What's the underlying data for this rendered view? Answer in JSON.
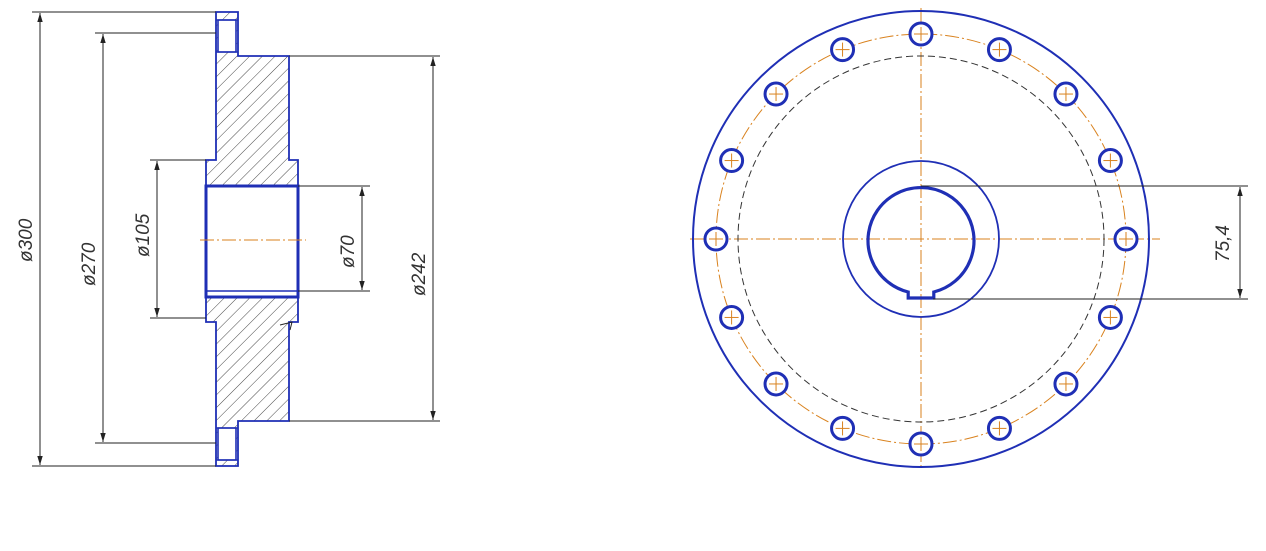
{
  "dimensions": {
    "d300": "ø300",
    "d270": "ø270",
    "d105": "ø105",
    "d70": "ø70",
    "d242": "ø242",
    "r75": "75,4"
  },
  "colors": {
    "outline": "#1f2fb5",
    "centerline": "#d9821e",
    "dimension": "#222222",
    "hatch": "#333333"
  },
  "front_view": {
    "bolt_hole_count": 16
  }
}
